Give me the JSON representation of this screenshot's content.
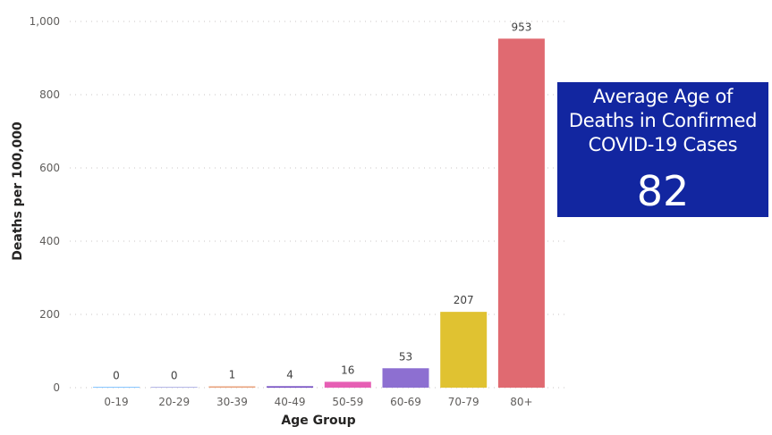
{
  "chart_data": {
    "type": "bar",
    "categories": [
      "0-19",
      "20-29",
      "30-39",
      "40-49",
      "50-59",
      "60-69",
      "70-79",
      "80+"
    ],
    "values": [
      0,
      0,
      1,
      4,
      16,
      53,
      207,
      953
    ],
    "data_labels": [
      "0",
      "0",
      "1",
      "4",
      "16",
      "53",
      "207",
      "953"
    ],
    "colors": [
      "#118dff",
      "#6b6fcf",
      "#e8a07a",
      "#744ec2",
      "#e65fb4",
      "#8d6fd1",
      "#e0c231",
      "#e06a71"
    ],
    "xlabel": "Age Group",
    "ylabel": "Deaths per 100,000",
    "ylim": [
      0,
      1000
    ],
    "yticks": [
      0,
      200,
      400,
      600,
      800,
      1000
    ],
    "ytick_labels": [
      "0",
      "200",
      "400",
      "600",
      "800",
      "1,000"
    ],
    "grid": true,
    "legend": "none"
  },
  "card": {
    "title_lines": [
      "Average Age of",
      "Deaths in Confirmed",
      "COVID-19 Cases"
    ],
    "value": "82",
    "background": "#1226a0"
  }
}
